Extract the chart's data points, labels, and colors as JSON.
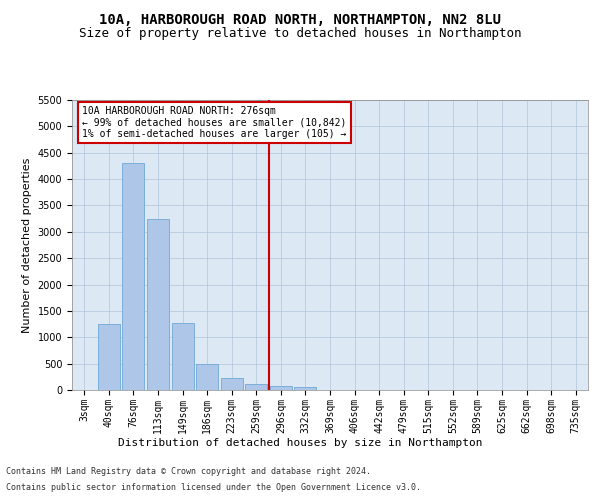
{
  "title": "10A, HARBOROUGH ROAD NORTH, NORTHAMPTON, NN2 8LU",
  "subtitle": "Size of property relative to detached houses in Northampton",
  "xlabel": "Distribution of detached houses by size in Northampton",
  "ylabel": "Number of detached properties",
  "footer_line1": "Contains HM Land Registry data © Crown copyright and database right 2024.",
  "footer_line2": "Contains public sector information licensed under the Open Government Licence v3.0.",
  "bar_labels": [
    "3sqm",
    "40sqm",
    "76sqm",
    "113sqm",
    "149sqm",
    "186sqm",
    "223sqm",
    "259sqm",
    "296sqm",
    "332sqm",
    "369sqm",
    "406sqm",
    "442sqm",
    "479sqm",
    "515sqm",
    "552sqm",
    "589sqm",
    "625sqm",
    "662sqm",
    "698sqm",
    "735sqm"
  ],
  "bar_values": [
    0,
    1250,
    4300,
    3250,
    1280,
    500,
    230,
    110,
    70,
    50,
    0,
    0,
    0,
    0,
    0,
    0,
    0,
    0,
    0,
    0,
    0
  ],
  "bar_color": "#aec6e8",
  "bar_edge_color": "#6fa8d6",
  "vline_x_index": 7.5,
  "vline_color": "#cc0000",
  "annotation_box_text": "10A HARBOROUGH ROAD NORTH: 276sqm\n← 99% of detached houses are smaller (10,842)\n1% of semi-detached houses are larger (105) →",
  "ylim": [
    0,
    5500
  ],
  "yticks": [
    0,
    500,
    1000,
    1500,
    2000,
    2500,
    3000,
    3500,
    4000,
    4500,
    5000,
    5500
  ],
  "bg_color": "#ffffff",
  "plot_bg_color": "#dce9f5",
  "grid_color": "#b0c4d8",
  "title_fontsize": 10,
  "subtitle_fontsize": 9,
  "axis_label_fontsize": 8,
  "tick_fontsize": 7,
  "annotation_fontsize": 7
}
